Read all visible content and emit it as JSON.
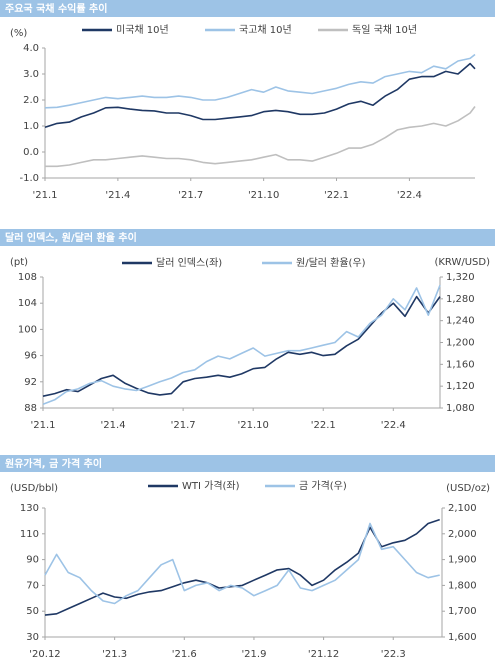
{
  "chart_data": [
    {
      "type": "line",
      "title": "주요국 국채 수익률 추이",
      "ylabel": "(%)",
      "x": [
        0,
        0.5,
        1,
        1.5,
        2,
        2.5,
        3,
        3.5,
        4,
        4.5,
        5,
        5.5,
        6,
        6.5,
        7,
        7.5,
        8,
        8.5,
        9,
        9.5,
        10,
        10.5,
        11,
        11.5,
        12,
        12.5,
        13,
        13.5,
        14,
        14.5,
        15,
        15.5,
        16,
        16.5,
        17,
        17.5,
        17.7
      ],
      "xlim": [
        0,
        17.7
      ],
      "xticks": [
        {
          "value": 0,
          "label": "'21.1"
        },
        {
          "value": 3,
          "label": "'21.4"
        },
        {
          "value": 6,
          "label": "'21.7"
        },
        {
          "value": 9,
          "label": "'21.10"
        },
        {
          "value": 12,
          "label": "'22.1"
        },
        {
          "value": 15,
          "label": "'22.4"
        }
      ],
      "ylim": [
        -1,
        4
      ],
      "yticks": [
        {
          "value": -1,
          "label": "-1.0"
        },
        {
          "value": 0,
          "label": "0.0"
        },
        {
          "value": 1,
          "label": "1.0"
        },
        {
          "value": 2,
          "label": "2.0"
        },
        {
          "value": 3,
          "label": "3.0"
        },
        {
          "value": 4,
          "label": "4.0"
        }
      ],
      "series": [
        {
          "name": "미국채 10년",
          "color": "#1f3864",
          "values": [
            0.95,
            1.1,
            1.15,
            1.35,
            1.5,
            1.7,
            1.72,
            1.65,
            1.6,
            1.58,
            1.5,
            1.5,
            1.4,
            1.25,
            1.25,
            1.3,
            1.35,
            1.4,
            1.55,
            1.6,
            1.55,
            1.45,
            1.45,
            1.5,
            1.65,
            1.85,
            1.95,
            1.8,
            2.15,
            2.4,
            2.8,
            2.9,
            2.9,
            3.1,
            3.0,
            3.4,
            3.2
          ]
        },
        {
          "name": "국고채 10년",
          "color": "#9dc3e6",
          "values": [
            1.7,
            1.72,
            1.8,
            1.9,
            2.0,
            2.1,
            2.05,
            2.1,
            2.15,
            2.1,
            2.1,
            2.15,
            2.1,
            2.0,
            2.0,
            2.1,
            2.25,
            2.4,
            2.3,
            2.5,
            2.35,
            2.3,
            2.25,
            2.35,
            2.45,
            2.6,
            2.7,
            2.65,
            2.9,
            3.0,
            3.1,
            3.05,
            3.3,
            3.2,
            3.5,
            3.6,
            3.75
          ]
        },
        {
          "name": "독일 국채 10년",
          "color": "#bfbfbf",
          "values": [
            -0.55,
            -0.55,
            -0.5,
            -0.4,
            -0.3,
            -0.3,
            -0.25,
            -0.2,
            -0.15,
            -0.2,
            -0.25,
            -0.25,
            -0.3,
            -0.4,
            -0.45,
            -0.4,
            -0.35,
            -0.3,
            -0.2,
            -0.1,
            -0.3,
            -0.3,
            -0.35,
            -0.2,
            -0.05,
            0.15,
            0.15,
            0.3,
            0.55,
            0.85,
            0.95,
            1.0,
            1.1,
            1.0,
            1.2,
            1.5,
            1.75
          ]
        }
      ]
    },
    {
      "type": "line",
      "title": "달러 인덱스, 원/달러 환율 추이",
      "ylabel": "(pt)",
      "y2label": "(KRW/USD)",
      "x": [
        0,
        0.5,
        1,
        1.5,
        2,
        2.5,
        3,
        3.5,
        4,
        4.5,
        5,
        5.5,
        6,
        6.5,
        7,
        7.5,
        8,
        8.5,
        9,
        9.5,
        10,
        10.5,
        11,
        11.5,
        12,
        12.5,
        13,
        13.5,
        14,
        14.5,
        15,
        15.5,
        16,
        16.5,
        17
      ],
      "xlim": [
        0,
        17
      ],
      "xticks": [
        {
          "value": 0,
          "label": "'21.1"
        },
        {
          "value": 3,
          "label": "'21.4"
        },
        {
          "value": 6,
          "label": "'21.7"
        },
        {
          "value": 9,
          "label": "'21.10"
        },
        {
          "value": 12,
          "label": "'22.1"
        },
        {
          "value": 15,
          "label": "'22.4"
        }
      ],
      "ylim": [
        88,
        108
      ],
      "yticks": [
        88,
        92,
        96,
        100,
        104,
        108
      ],
      "y2lim": [
        1080,
        1320
      ],
      "y2ticks": [
        {
          "value": 1080,
          "label": "1,080"
        },
        {
          "value": 1120,
          "label": "1,120"
        },
        {
          "value": 1160,
          "label": "1,160"
        },
        {
          "value": 1200,
          "label": "1,200"
        },
        {
          "value": 1240,
          "label": "1,240"
        },
        {
          "value": 1280,
          "label": "1,280"
        },
        {
          "value": 1320,
          "label": "1,320"
        }
      ],
      "series": [
        {
          "name": "달러 인덱스(좌)",
          "color": "#1f3864",
          "values": [
            89.8,
            90.2,
            90.8,
            90.5,
            91.5,
            92.5,
            93.0,
            91.8,
            91.0,
            90.3,
            90.0,
            90.2,
            92.0,
            92.5,
            92.7,
            93.0,
            92.7,
            93.2,
            94.0,
            94.2,
            95.5,
            96.5,
            96.2,
            96.5,
            96.0,
            96.2,
            97.5,
            98.5,
            100.5,
            102.5,
            104.0,
            102.0,
            105.0,
            102.5,
            105.0
          ]
        },
        {
          "name": "원/달러 환율(우)",
          "color": "#9dc3e6",
          "axis": "y2",
          "values": [
            1087,
            1095,
            1110,
            1115,
            1125,
            1130,
            1120,
            1115,
            1112,
            1120,
            1128,
            1135,
            1145,
            1150,
            1165,
            1175,
            1170,
            1180,
            1190,
            1175,
            1180,
            1185,
            1185,
            1190,
            1195,
            1200,
            1220,
            1210,
            1235,
            1250,
            1280,
            1260,
            1300,
            1250,
            1305
          ]
        }
      ]
    },
    {
      "type": "line",
      "title": "원유가격, 금 가격 추이",
      "ylabel": "(USD/bbl)",
      "y2label": "(USD/oz)",
      "x": [
        0,
        0.5,
        1,
        1.5,
        2,
        2.5,
        3,
        3.5,
        4,
        4.5,
        5,
        5.5,
        6,
        6.5,
        7,
        7.5,
        8,
        8.5,
        9,
        9.5,
        10,
        10.5,
        11,
        11.5,
        12,
        12.5,
        13,
        13.5,
        14,
        14.5,
        15,
        15.5,
        16,
        16.5,
        17
      ],
      "xlim": [
        0,
        17.1
      ],
      "xticks": [
        {
          "value": 0,
          "label": "'20.12"
        },
        {
          "value": 3,
          "label": "'21.3"
        },
        {
          "value": 6,
          "label": "'21.6"
        },
        {
          "value": 9,
          "label": "'21.9"
        },
        {
          "value": 12,
          "label": "'21.12"
        },
        {
          "value": 15,
          "label": "'22.3"
        }
      ],
      "ylim": [
        30,
        130
      ],
      "yticks": [
        30,
        50,
        70,
        90,
        110,
        130
      ],
      "y2lim": [
        1600,
        2100
      ],
      "y2ticks": [
        {
          "value": 1600,
          "label": "1,600"
        },
        {
          "value": 1700,
          "label": "1,700"
        },
        {
          "value": 1800,
          "label": "1,800"
        },
        {
          "value": 1900,
          "label": "1,900"
        },
        {
          "value": 2000,
          "label": "2,000"
        },
        {
          "value": 2100,
          "label": "2,100"
        }
      ],
      "series": [
        {
          "name": "WTI 가격(좌)",
          "color": "#1f3864",
          "values": [
            47,
            48,
            52,
            56,
            60,
            64,
            61,
            60,
            63,
            65,
            66,
            69,
            72,
            74,
            72,
            68,
            69,
            70,
            74,
            78,
            82,
            83,
            78,
            70,
            74,
            82,
            88,
            95,
            115,
            100,
            103,
            105,
            110,
            118,
            121
          ]
        },
        {
          "name": "금 가격(우)",
          "color": "#9dc3e6",
          "axis": "y2",
          "values": [
            1840,
            1920,
            1850,
            1830,
            1780,
            1740,
            1730,
            1760,
            1780,
            1830,
            1880,
            1900,
            1780,
            1800,
            1810,
            1780,
            1800,
            1790,
            1760,
            1780,
            1800,
            1860,
            1790,
            1780,
            1800,
            1820,
            1860,
            1900,
            2040,
            1940,
            1950,
            1900,
            1850,
            1830,
            1840
          ]
        }
      ]
    }
  ]
}
